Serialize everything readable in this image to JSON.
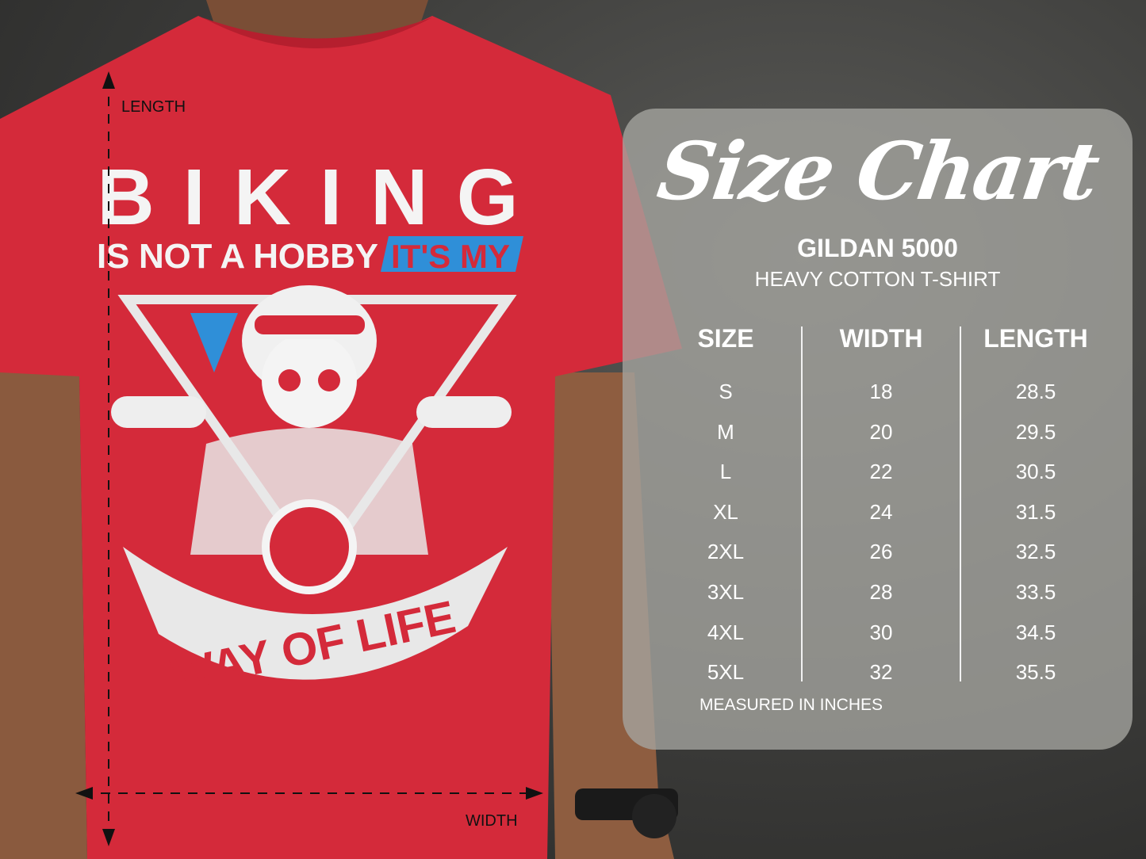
{
  "colors": {
    "shirt": "#d42a3a",
    "panel": "#a5a5a0",
    "accent_blue": "#2f8fd8",
    "text": "#ffffff"
  },
  "shirt_graphic": {
    "line1": "BIKING",
    "line2": "IS NOT A HOBBY",
    "line2_highlight": "IT'S MY",
    "line3": "WAY OF LIFE"
  },
  "measure": {
    "length_label": "LENGTH",
    "width_label": "WIDTH"
  },
  "size_chart": {
    "title": "Size Chart",
    "brand": "GILDAN 5000",
    "product": "HEAVY COTTON T-SHIRT",
    "headers": [
      "SIZE",
      "WIDTH",
      "LENGTH"
    ],
    "sizes": [
      "S",
      "M",
      "L",
      "XL",
      "2XL",
      "3XL",
      "4XL",
      "5XL"
    ],
    "widths": [
      "18",
      "20",
      "22",
      "24",
      "26",
      "28",
      "30",
      "32"
    ],
    "lengths": [
      "28.5",
      "29.5",
      "30.5",
      "31.5",
      "32.5",
      "33.5",
      "34.5",
      "35.5"
    ],
    "note": "MEASURED IN INCHES"
  }
}
